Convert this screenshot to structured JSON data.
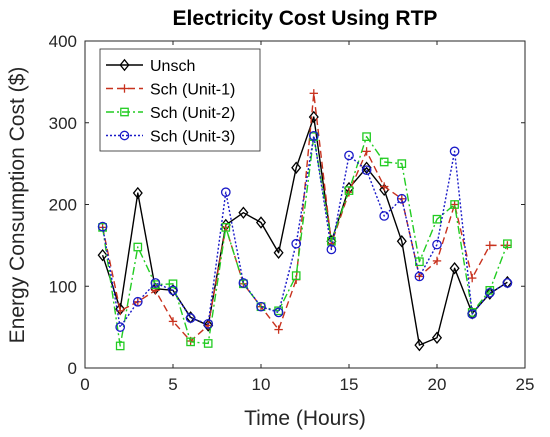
{
  "chart_data": {
    "type": "line",
    "title": "Electricity Cost Using RTP",
    "xlabel": "Time (Hours)",
    "ylabel": "Energy Consumption Cost ($)",
    "xlim": [
      0,
      25
    ],
    "ylim": [
      0,
      400
    ],
    "xticks": [
      0,
      5,
      10,
      15,
      20,
      25
    ],
    "yticks": [
      0,
      100,
      200,
      300,
      400
    ],
    "grid": false,
    "legend_position": "top-left",
    "x": [
      1,
      2,
      3,
      4,
      5,
      6,
      7,
      8,
      9,
      10,
      11,
      12,
      13,
      14,
      15,
      16,
      17,
      18,
      19,
      20,
      21,
      22,
      23,
      24
    ],
    "series": [
      {
        "name": "Unsch",
        "color": "#000000",
        "line_style": "solid",
        "marker": "diamond",
        "values": [
          138,
          72,
          214,
          97,
          95,
          62,
          52,
          175,
          190,
          178,
          141,
          245,
          307,
          155,
          220,
          245,
          218,
          155,
          28,
          37,
          122,
          67,
          91,
          105
        ]
      },
      {
        "name": "Sch (Unit-1)",
        "color": "#c8321e",
        "line_style": "dashed",
        "marker": "plus",
        "values": [
          172,
          70,
          81,
          95,
          57,
          33,
          52,
          172,
          103,
          75,
          47,
          108,
          336,
          152,
          215,
          265,
          222,
          207,
          112,
          131,
          200,
          110,
          150,
          150
        ]
      },
      {
        "name": "Sch (Unit-2)",
        "color": "#22cc22",
        "line_style": "dash-dot",
        "marker": "square",
        "values": [
          172,
          27,
          148,
          102,
          103,
          32,
          30,
          172,
          103,
          75,
          70,
          113,
          283,
          155,
          217,
          283,
          252,
          250,
          130,
          182,
          200,
          68,
          95,
          152
        ]
      },
      {
        "name": "Sch (Unit-3)",
        "color": "#1a1ac8",
        "line_style": "dotted",
        "marker": "circle",
        "values": [
          173,
          50,
          81,
          104,
          95,
          61,
          54,
          215,
          104,
          75,
          68,
          152,
          284,
          145,
          260,
          242,
          186,
          207,
          112,
          151,
          265,
          66,
          92,
          104
        ]
      }
    ]
  }
}
